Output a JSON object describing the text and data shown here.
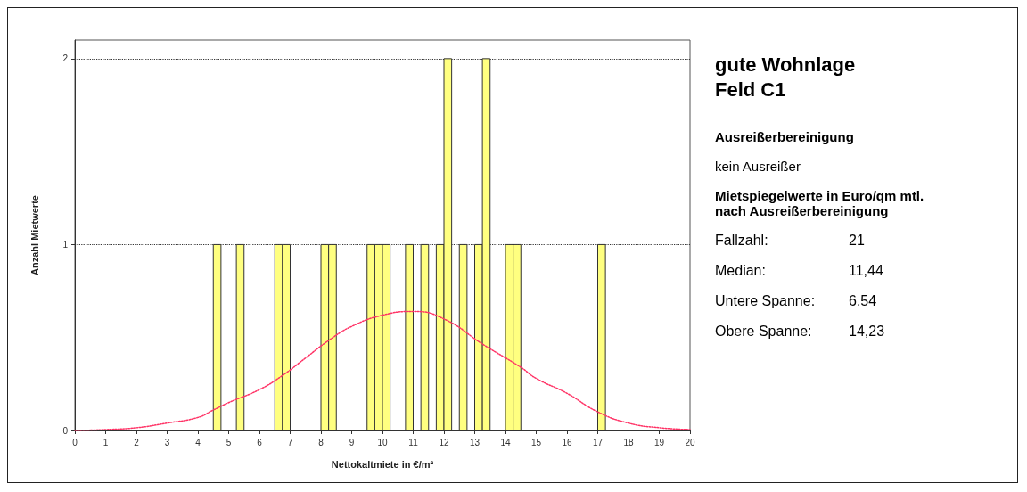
{
  "chart_data": {
    "type": "histogram",
    "title": "gute Wohnlage Feld C1",
    "xlabel": "Nettokaltmiete in €/m²",
    "ylabel": "Anzahl Mietwerte",
    "annotations": [
      "Ausreißerbereinigung",
      "kein Ausreißer",
      "Mietspiegelwerte in Euro/qm mtl. nach Ausreißerbereinigung",
      "Fallzahl:",
      "21",
      "Median:",
      "11,44",
      "Untere Spanne:",
      "6,54",
      "Obere Spanne:",
      "14,23"
    ],
    "bins": [
      0,
      0.25,
      0.5,
      0.75,
      1,
      1.25,
      1.5,
      1.75,
      2,
      2.25,
      2.5,
      2.75,
      3,
      3.25,
      3.5,
      3.75,
      4,
      4.25,
      4.5,
      4.75,
      5,
      5.25,
      5.5,
      5.75,
      6,
      6.25,
      6.5,
      6.75,
      7,
      7.25,
      7.5,
      7.75,
      8,
      8.25,
      8.5,
      8.75,
      9,
      9.25,
      9.5,
      9.75,
      10,
      10.25,
      10.5,
      10.75,
      11,
      11.25,
      11.5,
      11.75,
      12,
      12.25,
      12.5,
      12.75,
      13,
      13.25,
      13.5,
      13.75,
      14,
      14.25,
      14.5,
      14.75,
      15,
      15.25,
      15.5,
      15.75,
      16,
      16.25,
      16.5,
      16.75,
      17,
      17.25,
      17.5,
      17.75,
      18,
      18.25,
      18.5,
      18.75,
      19,
      19.25,
      19.5,
      19.75,
      20
    ],
    "values": [
      0,
      0,
      0,
      0,
      0,
      0,
      0,
      0,
      0,
      0,
      0,
      0,
      0,
      0,
      0,
      0,
      0,
      0,
      1,
      0,
      0,
      1,
      0,
      0,
      0,
      0,
      1,
      1,
      0,
      0,
      0,
      0,
      1,
      1,
      0,
      0,
      0,
      0,
      1,
      1,
      1,
      0,
      0,
      1,
      0,
      1,
      0,
      1,
      2,
      0,
      1,
      0,
      1,
      2,
      0,
      0,
      1,
      1,
      0,
      0,
      0,
      0,
      0,
      0,
      0,
      0,
      0,
      0,
      1,
      0,
      0,
      0,
      0,
      0,
      0,
      0,
      0,
      0,
      0,
      0
    ],
    "color": "#ffff80",
    "series": [
      {
        "type": "line",
        "color": "#ff3366",
        "line_style": "dotted",
        "marker": "none",
        "x": [
          0,
          1,
          2,
          3,
          4,
          4.5,
          5,
          6,
          6.7,
          7.5,
          8.3,
          9,
          10,
          11,
          12,
          13.3,
          14.5,
          15,
          16,
          17,
          18,
          19,
          20
        ],
        "values": [
          0,
          0.005,
          0.015,
          0.04,
          0.07,
          0.11,
          0.15,
          0.22,
          0.29,
          0.39,
          0.49,
          0.56,
          0.62,
          0.64,
          0.6,
          0.46,
          0.34,
          0.28,
          0.2,
          0.1,
          0.04,
          0.015,
          0.005
        ]
      }
    ],
    "xlim": [
      0,
      20
    ],
    "xticks": [
      0,
      1,
      2,
      3,
      4,
      5,
      6,
      7,
      8,
      9,
      10,
      11,
      12,
      13,
      14,
      15,
      16,
      17,
      18,
      19,
      20
    ],
    "ylim": [
      0,
      2.1
    ],
    "yticks": [
      0,
      1,
      2
    ],
    "grid": "y"
  }
}
